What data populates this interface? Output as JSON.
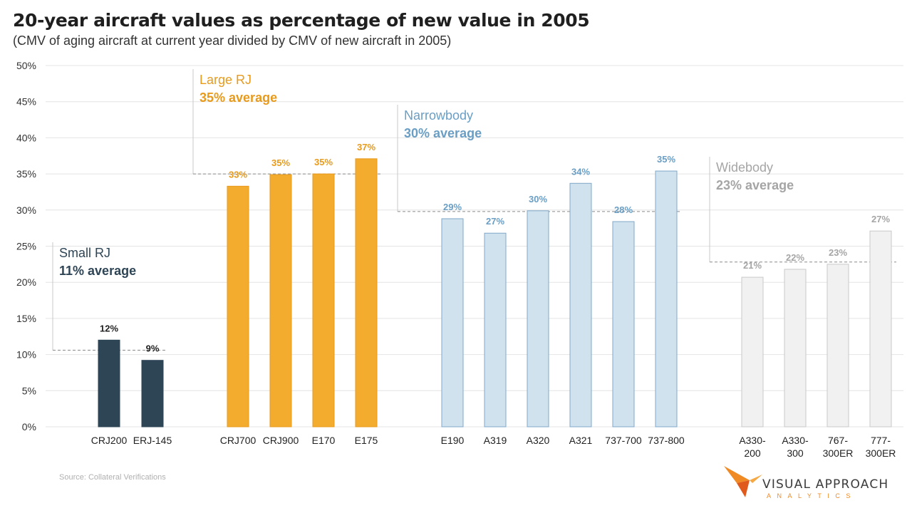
{
  "title": "20-year aircraft values as percentage of new value in 2005",
  "subtitle": "(CMV of aging aircraft at current year divided by CMV of new aircraft in 2005)",
  "source": "Source: Collateral Verifications",
  "logo": {
    "text": "VISUAL APPROACH",
    "sub": "ANALYTICS"
  },
  "colors": {
    "small_rj": "#2e4556",
    "large_rj": "#f3ac2e",
    "large_rj_label": "#e89a1c",
    "narrowbody": "#d0e2ee",
    "narrowbody_label": "#6a9ec4",
    "widebody": "#f1f1f1",
    "widebody_label": "#a5a5a5"
  },
  "chart_data": {
    "type": "bar",
    "ylim": [
      0,
      50
    ],
    "yticks": [
      "0%",
      "5%",
      "10%",
      "15%",
      "20%",
      "25%",
      "30%",
      "35%",
      "40%",
      "45%",
      "50%"
    ],
    "grid": true,
    "groups": [
      {
        "name": "Small RJ",
        "average_label": "11% average",
        "average": 10.6,
        "categories": [
          [
            "CRJ200"
          ],
          [
            "ERJ-145"
          ]
        ],
        "values": [
          12.0,
          9.2
        ],
        "labels": [
          "12%",
          "9%"
        ]
      },
      {
        "name": "Large RJ",
        "average_label": "35% average",
        "average": 35.0,
        "categories": [
          [
            "CRJ700"
          ],
          [
            "CRJ900"
          ],
          [
            "E170"
          ],
          [
            "E175"
          ]
        ],
        "values": [
          33.3,
          34.9,
          35.0,
          37.1
        ],
        "labels": [
          "33%",
          "35%",
          "35%",
          "37%"
        ]
      },
      {
        "name": "Narrowbody",
        "average_label": "30% average",
        "average": 29.8,
        "categories": [
          [
            "E190"
          ],
          [
            "A319"
          ],
          [
            "A320"
          ],
          [
            "A321"
          ],
          [
            "737-700"
          ],
          [
            "737-800"
          ]
        ],
        "values": [
          28.8,
          26.8,
          29.9,
          33.7,
          28.4,
          35.4
        ],
        "labels": [
          "29%",
          "27%",
          "30%",
          "34%",
          "28%",
          "35%"
        ]
      },
      {
        "name": "Widebody",
        "average_label": "23% average",
        "average": 22.8,
        "categories": [
          [
            "A330-",
            "200"
          ],
          [
            "A330-",
            "300"
          ],
          [
            "767-",
            "300ER"
          ],
          [
            "777-",
            "300ER"
          ]
        ],
        "values": [
          20.7,
          21.8,
          22.5,
          27.1
        ],
        "labels": [
          "21%",
          "22%",
          "23%",
          "27%"
        ]
      }
    ]
  }
}
